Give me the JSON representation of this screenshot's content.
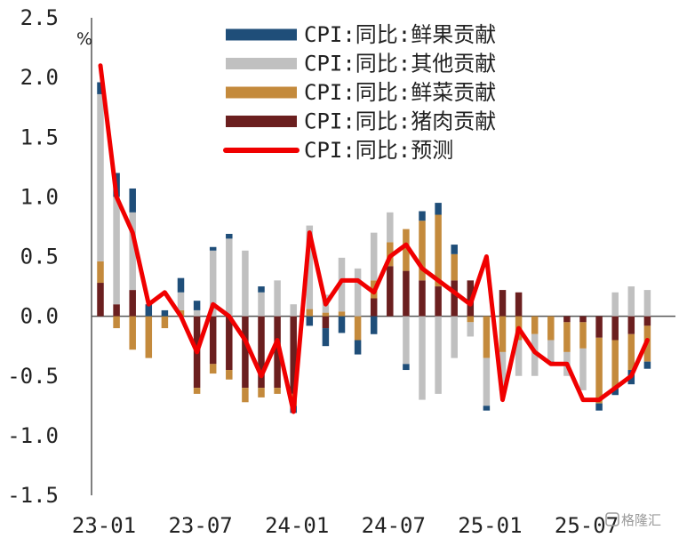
{
  "chart_data": {
    "type": "bar",
    "stacked": true,
    "y_unit": "%",
    "ylim": [
      -1.5,
      2.5
    ],
    "y_ticks": [
      "2.5",
      "2.0",
      "1.5",
      "1.0",
      "0.5",
      "0.0",
      "-0.5",
      "-1.0",
      "-1.5"
    ],
    "y_tick_values": [
      2.5,
      2.0,
      1.5,
      1.0,
      0.5,
      0.0,
      -0.5,
      -1.0,
      -1.5
    ],
    "x_ticks": [
      "23-01",
      "23-07",
      "24-01",
      "24-07",
      "25-01",
      "25-07"
    ],
    "x_tick_index": [
      0,
      6,
      12,
      18,
      24,
      30
    ],
    "categories": [
      "23-01",
      "23-02",
      "23-03",
      "23-04",
      "23-05",
      "23-06",
      "23-07",
      "23-08",
      "23-09",
      "23-10",
      "23-11",
      "23-12",
      "24-01",
      "24-02",
      "24-03",
      "24-04",
      "24-05",
      "24-06",
      "24-07",
      "24-08",
      "24-09",
      "24-10",
      "24-11",
      "24-12",
      "25-01",
      "25-02",
      "25-03",
      "25-04",
      "25-05",
      "25-06",
      "25-07",
      "25-08",
      "25-09",
      "25-10",
      "25-11"
    ],
    "legend_position": "top-right",
    "series": [
      {
        "name": "CPI:同比:鲜果贡献",
        "kind": "bar",
        "color": "#1f4e79",
        "values": [
          0.1,
          0.2,
          0.2,
          0.1,
          0.05,
          0.12,
          0.08,
          0.03,
          0.04,
          0.0,
          0.05,
          0.0,
          -0.06,
          -0.08,
          -0.15,
          -0.14,
          -0.12,
          -0.15,
          0.0,
          -0.05,
          0.08,
          0.1,
          0.08,
          0.0,
          -0.04,
          0.0,
          0.0,
          0.0,
          -0.02,
          0.0,
          0.0,
          -0.06,
          -0.06,
          -0.12,
          -0.06
        ]
      },
      {
        "name": "CPI:同比:其他贡献",
        "kind": "bar",
        "color": "#c0c0c0",
        "values": [
          1.4,
          0.9,
          0.65,
          0.0,
          0.0,
          0.15,
          0.05,
          0.55,
          0.65,
          0.55,
          0.2,
          0.3,
          0.1,
          0.7,
          0.15,
          0.45,
          0.4,
          0.4,
          0.25,
          -0.4,
          -0.7,
          -0.65,
          -0.35,
          -0.12,
          -0.4,
          -0.32,
          -0.3,
          -0.35,
          -0.18,
          -0.2,
          -0.35,
          0.0,
          0.2,
          0.25,
          0.22
        ]
      },
      {
        "name": "CPI:同比:鲜菜贡献",
        "kind": "bar",
        "color": "#c48a3c",
        "values": [
          0.18,
          -0.1,
          -0.28,
          -0.35,
          -0.1,
          0.05,
          -0.05,
          -0.08,
          -0.08,
          -0.12,
          -0.08,
          -0.05,
          -0.1,
          0.06,
          0.03,
          0.04,
          -0.2,
          0.15,
          0.2,
          0.35,
          0.5,
          0.6,
          0.22,
          -0.05,
          -0.35,
          -0.3,
          -0.2,
          -0.15,
          -0.2,
          -0.25,
          -0.22,
          -0.55,
          -0.4,
          -0.3,
          -0.3
        ]
      },
      {
        "name": "CPI:同比:猪肉贡献",
        "kind": "bar",
        "color": "#6b1f1f",
        "values": [
          0.28,
          0.1,
          0.22,
          0.0,
          0.0,
          0.0,
          -0.6,
          -0.4,
          -0.45,
          -0.6,
          -0.6,
          -0.6,
          -0.65,
          0.0,
          -0.1,
          0.0,
          0.0,
          0.15,
          0.42,
          0.38,
          0.3,
          0.25,
          0.3,
          0.3,
          0.0,
          0.22,
          0.2,
          0.0,
          0.0,
          -0.05,
          -0.05,
          -0.18,
          -0.2,
          -0.15,
          -0.08
        ]
      },
      {
        "name": "CPI:同比:预测",
        "kind": "line",
        "color": "#f00000",
        "values": [
          2.1,
          1.0,
          0.7,
          0.1,
          0.2,
          0.0,
          -0.3,
          0.1,
          0.0,
          -0.2,
          -0.5,
          -0.2,
          -0.8,
          0.7,
          0.1,
          0.3,
          0.3,
          0.2,
          0.5,
          0.6,
          0.4,
          0.3,
          0.2,
          0.1,
          0.5,
          -0.7,
          -0.1,
          -0.3,
          -0.4,
          -0.4,
          -0.7,
          -0.7,
          -0.6,
          -0.5,
          -0.2
        ]
      }
    ]
  },
  "watermark": "格隆汇"
}
